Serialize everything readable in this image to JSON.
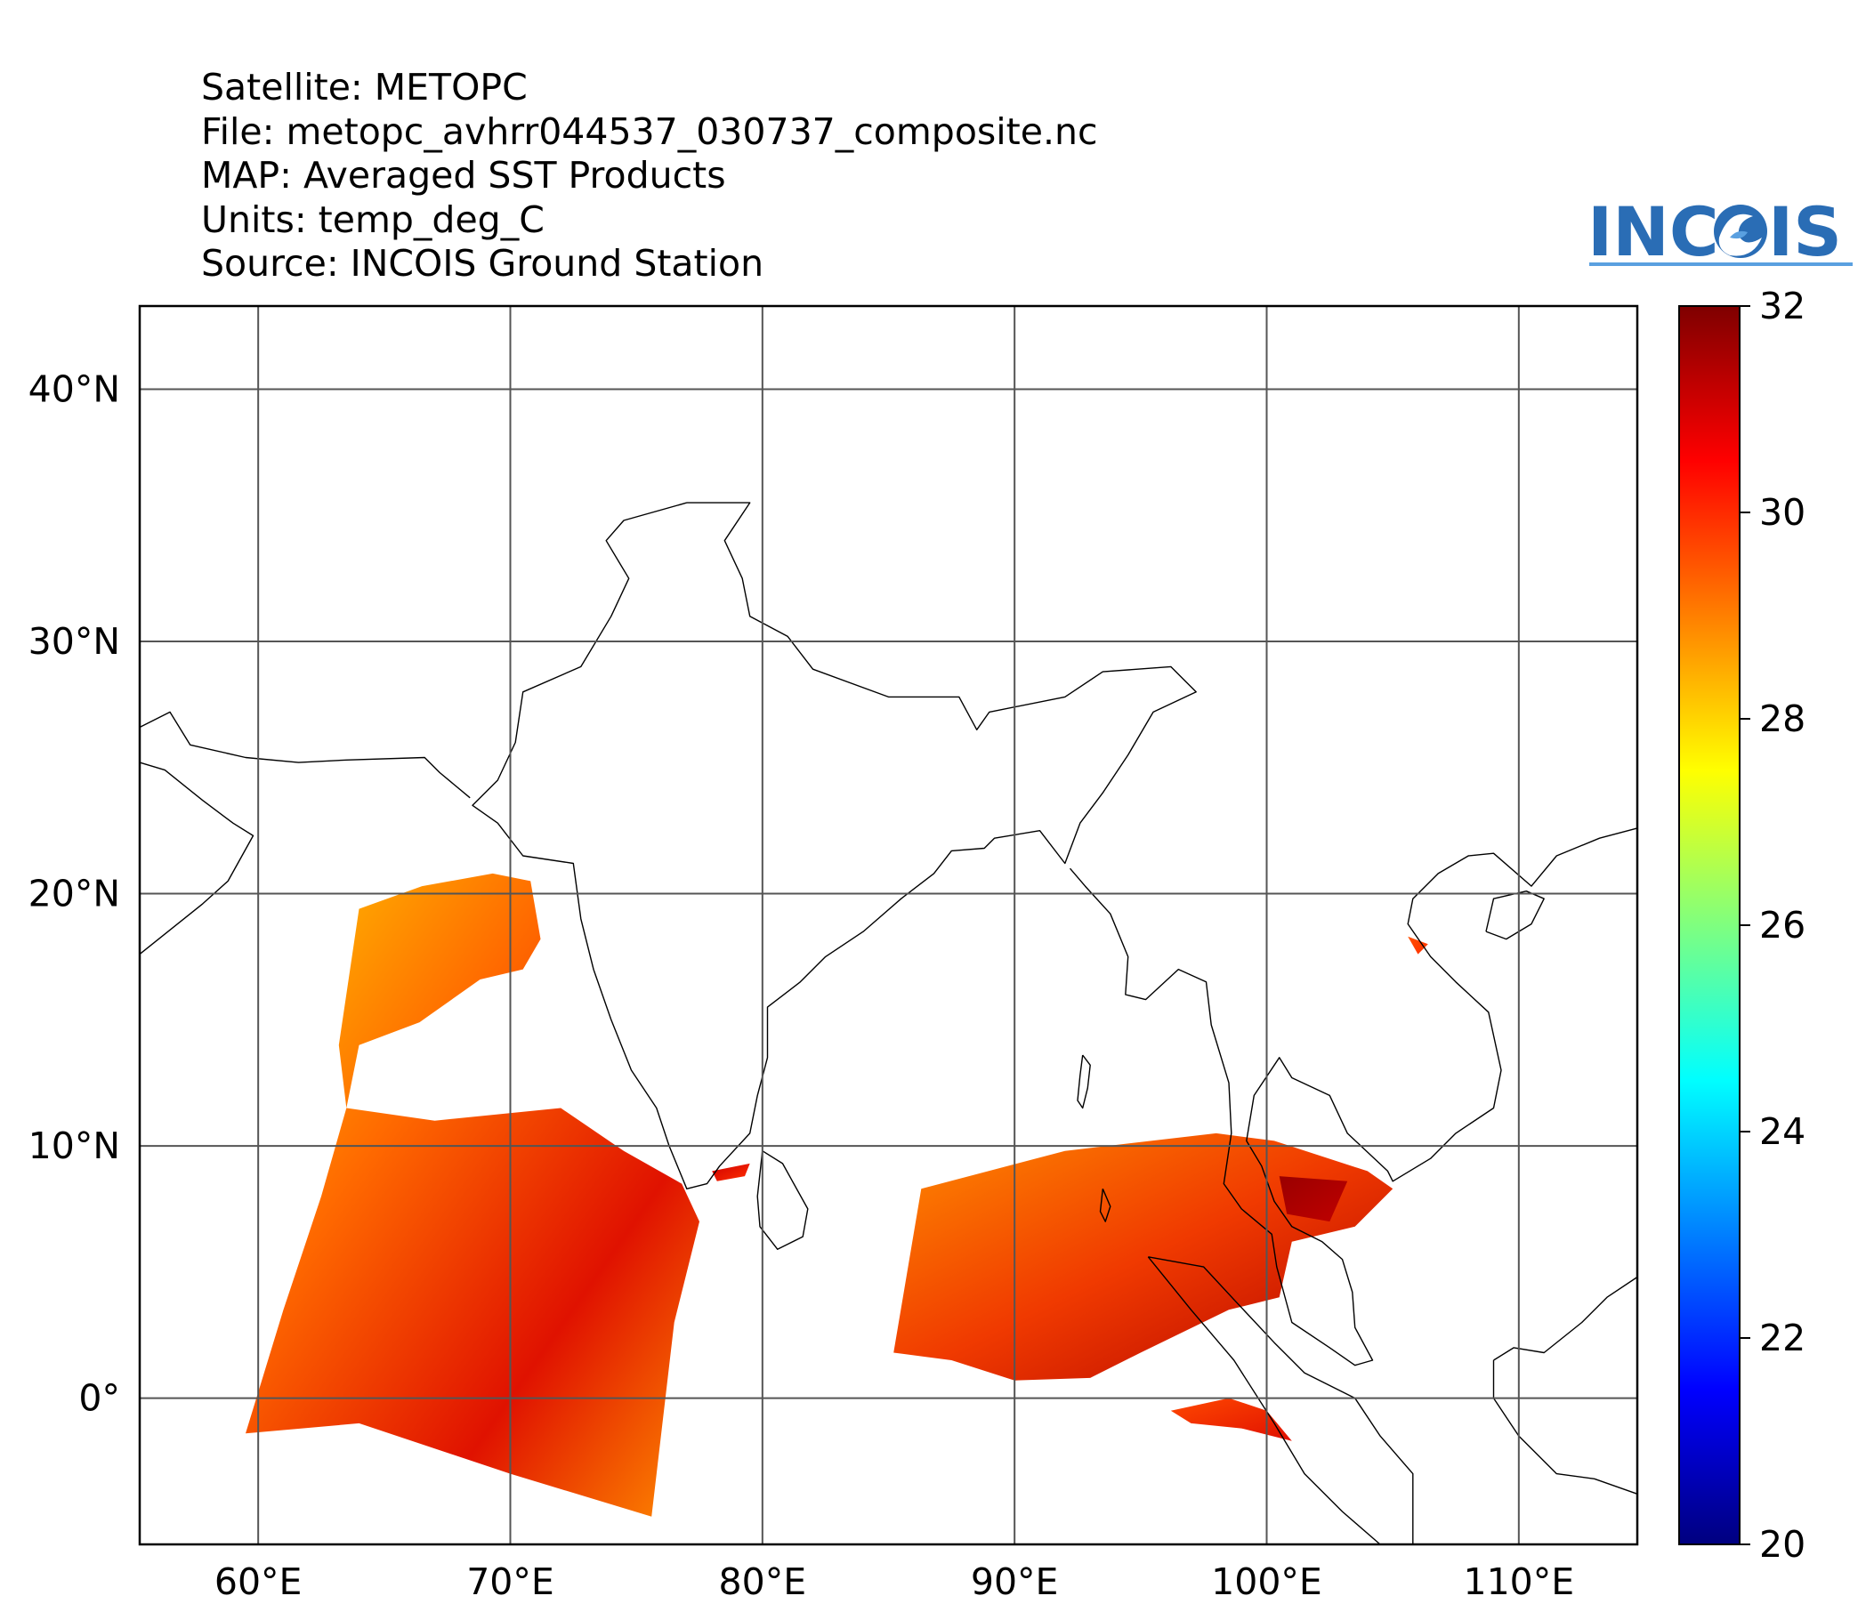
{
  "header": {
    "satellite": "Satellite: METOPC",
    "file": "File: metopc_avhrr044537_030737_composite.nc",
    "map": "MAP: Averaged SST Products",
    "units": "Units: temp_deg_C",
    "source": "Source: INCOIS Ground Station"
  },
  "logo": {
    "text_left": "INC",
    "text_right": "IS",
    "colors": {
      "text": "#2a6db5",
      "accent": "#5aa0e0"
    }
  },
  "map": {
    "lon_range": [
      55.3,
      114.7
    ],
    "lat_range": [
      -5.8,
      43.3
    ],
    "lon_ticks": [
      60,
      70,
      80,
      90,
      100,
      110
    ],
    "lat_ticks": [
      0,
      10,
      20,
      30,
      40
    ],
    "lon_labels": [
      "60°E",
      "70°E",
      "80°E",
      "90°E",
      "100°E",
      "110°E"
    ],
    "lat_labels": [
      "0°",
      "10°N",
      "20°N",
      "30°N",
      "40°N"
    ],
    "gridlines": true,
    "coast_color": "#000000",
    "swaths": [
      {
        "name": "arabian-sea-swath",
        "polygon": [
          [
            64.0,
            19.4
          ],
          [
            66.5,
            20.3
          ],
          [
            69.3,
            20.8
          ],
          [
            70.8,
            20.5
          ],
          [
            71.2,
            18.2
          ],
          [
            70.5,
            17.0
          ],
          [
            68.8,
            16.6
          ],
          [
            66.4,
            14.9
          ],
          [
            64.0,
            14.0
          ],
          [
            63.5,
            11.5
          ],
          [
            67.0,
            11.0
          ],
          [
            72.0,
            11.5
          ],
          [
            74.5,
            9.8
          ],
          [
            76.8,
            8.5
          ],
          [
            77.5,
            7.0
          ],
          [
            76.5,
            3.0
          ],
          [
            75.6,
            -4.7
          ],
          [
            70.0,
            -3.0
          ],
          [
            64.0,
            -1.0
          ],
          [
            59.5,
            -1.4
          ],
          [
            61.0,
            3.5
          ],
          [
            62.5,
            8.0
          ],
          [
            63.5,
            11.5
          ],
          [
            63.2,
            14.0
          ]
        ],
        "gradient_stops": [
          [
            0,
            "#ffc700"
          ],
          [
            0.35,
            "#ff6a00"
          ],
          [
            0.7,
            "#e01200"
          ],
          [
            1,
            "#ff8c00"
          ]
        ]
      },
      {
        "name": "bay-of-bengal-swath",
        "polygon": [
          [
            86.3,
            8.3
          ],
          [
            92.0,
            9.8
          ],
          [
            98.0,
            10.5
          ],
          [
            100.3,
            10.2
          ],
          [
            104.0,
            9.0
          ],
          [
            105.0,
            8.3
          ],
          [
            103.5,
            6.8
          ],
          [
            101.0,
            6.2
          ],
          [
            100.5,
            4.0
          ],
          [
            98.5,
            3.5
          ],
          [
            95.0,
            1.8
          ],
          [
            93.0,
            0.8
          ],
          [
            90.0,
            0.7
          ],
          [
            87.5,
            1.5
          ],
          [
            85.2,
            1.8
          ]
        ],
        "gradient_stops": [
          [
            0,
            "#ff8c00"
          ],
          [
            0.5,
            "#f03a00"
          ],
          [
            1,
            "#b00000"
          ]
        ]
      },
      {
        "name": "sumatra-west-patch",
        "polygon": [
          [
            96.2,
            -0.5
          ],
          [
            98.5,
            0.0
          ],
          [
            100.0,
            -0.5
          ],
          [
            101.0,
            -1.7
          ],
          [
            99.0,
            -1.2
          ],
          [
            97.0,
            -1.0
          ]
        ],
        "gradient_stops": [
          [
            0,
            "#ff4800"
          ],
          [
            1,
            "#e01000"
          ]
        ]
      },
      {
        "name": "gulf-of-mannar-patch",
        "polygon": [
          [
            78.0,
            9.0
          ],
          [
            79.5,
            9.3
          ],
          [
            79.3,
            8.8
          ],
          [
            78.2,
            8.6
          ]
        ],
        "gradient_stops": [
          [
            0,
            "#d00000"
          ],
          [
            1,
            "#ff3000"
          ]
        ]
      },
      {
        "name": "gulf-of-thailand-patch",
        "polygon": [
          [
            100.5,
            8.8
          ],
          [
            103.2,
            8.6
          ],
          [
            102.5,
            7.0
          ],
          [
            100.8,
            7.3
          ]
        ],
        "gradient_stops": [
          [
            0,
            "#9a0000"
          ],
          [
            1,
            "#c00000"
          ]
        ]
      },
      {
        "name": "vietnam-coast-patch",
        "polygon": [
          [
            105.6,
            18.3
          ],
          [
            106.4,
            18.0
          ],
          [
            106.0,
            17.6
          ]
        ],
        "gradient_stops": [
          [
            0,
            "#ff5000"
          ],
          [
            1,
            "#ff3000"
          ]
        ]
      }
    ]
  },
  "colorbar": {
    "min": 20,
    "max": 32,
    "ticks": [
      20,
      22,
      24,
      26,
      28,
      30,
      32
    ],
    "tick_labels": [
      "20",
      "22",
      "24",
      "26",
      "28",
      "30",
      "32"
    ],
    "colormap": [
      "#00007f",
      "#0000ff",
      "#007fff",
      "#00ffff",
      "#7fff7f",
      "#ffff00",
      "#ff7f00",
      "#ff0000",
      "#7f0000"
    ]
  }
}
